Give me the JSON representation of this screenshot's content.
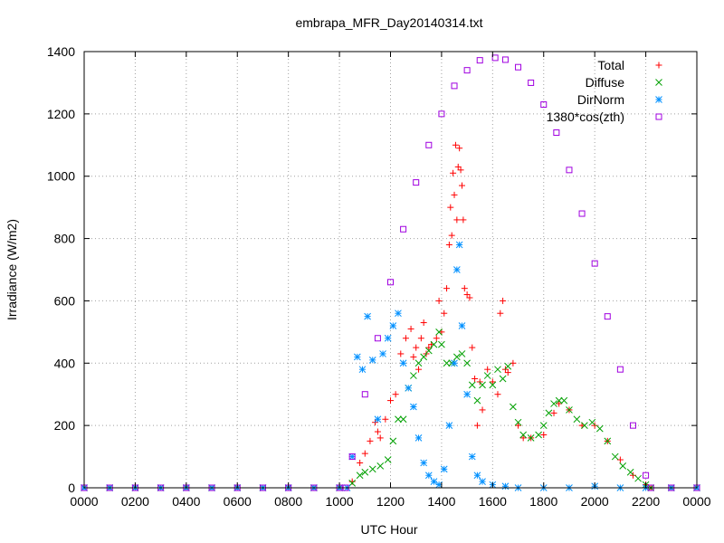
{
  "chart_data": {
    "type": "scatter",
    "title": "embrapa_MFR_Day20140314.txt",
    "xlabel": "UTC Hour",
    "ylabel": "Irradiance (W/m2)",
    "xlim": [
      0,
      24
    ],
    "ylim": [
      0,
      1400
    ],
    "grid": true,
    "legend_position": "top-right",
    "x_ticks": [
      {
        "value": 0,
        "label": "0000"
      },
      {
        "value": 2,
        "label": "0200"
      },
      {
        "value": 4,
        "label": "0400"
      },
      {
        "value": 6,
        "label": "0600"
      },
      {
        "value": 8,
        "label": "0800"
      },
      {
        "value": 10,
        "label": "1000"
      },
      {
        "value": 12,
        "label": "1200"
      },
      {
        "value": 14,
        "label": "1400"
      },
      {
        "value": 16,
        "label": "1600"
      },
      {
        "value": 18,
        "label": "1800"
      },
      {
        "value": 20,
        "label": "2000"
      },
      {
        "value": 22,
        "label": "2200"
      },
      {
        "value": 24,
        "label": "0000"
      }
    ],
    "y_ticks": [
      {
        "value": 0,
        "label": "0"
      },
      {
        "value": 200,
        "label": "200"
      },
      {
        "value": 400,
        "label": "400"
      },
      {
        "value": 600,
        "label": "600"
      },
      {
        "value": 800,
        "label": "800"
      },
      {
        "value": 1000,
        "label": "1000"
      },
      {
        "value": 1200,
        "label": "1200"
      },
      {
        "value": 1400,
        "label": "1400"
      }
    ],
    "series": [
      {
        "name": "Total",
        "color": "#ff0000",
        "marker": "plus",
        "points": [
          [
            0,
            0
          ],
          [
            1,
            0
          ],
          [
            2,
            0
          ],
          [
            3,
            0
          ],
          [
            4,
            0
          ],
          [
            5,
            0
          ],
          [
            6,
            0
          ],
          [
            7,
            0
          ],
          [
            8,
            0
          ],
          [
            9,
            0
          ],
          [
            10,
            0
          ],
          [
            10.5,
            20
          ],
          [
            10.8,
            80
          ],
          [
            11.0,
            110
          ],
          [
            11.2,
            150
          ],
          [
            11.4,
            210
          ],
          [
            11.5,
            180
          ],
          [
            11.6,
            160
          ],
          [
            11.8,
            220
          ],
          [
            12.0,
            280
          ],
          [
            12.2,
            300
          ],
          [
            12.4,
            430
          ],
          [
            12.6,
            480
          ],
          [
            12.8,
            510
          ],
          [
            12.9,
            420
          ],
          [
            13.0,
            450
          ],
          [
            13.1,
            380
          ],
          [
            13.2,
            480
          ],
          [
            13.3,
            530
          ],
          [
            13.4,
            430
          ],
          [
            13.5,
            450
          ],
          [
            13.6,
            460
          ],
          [
            13.8,
            480
          ],
          [
            13.9,
            600
          ],
          [
            14.0,
            500
          ],
          [
            14.1,
            560
          ],
          [
            14.2,
            640
          ],
          [
            14.3,
            780
          ],
          [
            14.35,
            900
          ],
          [
            14.4,
            810
          ],
          [
            14.45,
            1010
          ],
          [
            14.5,
            940
          ],
          [
            14.55,
            1100
          ],
          [
            14.6,
            860
          ],
          [
            14.65,
            1030
          ],
          [
            14.7,
            1090
          ],
          [
            14.75,
            1020
          ],
          [
            14.8,
            970
          ],
          [
            14.85,
            860
          ],
          [
            14.9,
            640
          ],
          [
            15.0,
            620
          ],
          [
            15.1,
            610
          ],
          [
            15.2,
            450
          ],
          [
            15.3,
            350
          ],
          [
            15.4,
            200
          ],
          [
            15.5,
            340
          ],
          [
            15.6,
            250
          ],
          [
            15.8,
            380
          ],
          [
            16.0,
            340
          ],
          [
            16.2,
            300
          ],
          [
            16.3,
            560
          ],
          [
            16.4,
            600
          ],
          [
            16.5,
            380
          ],
          [
            16.6,
            370
          ],
          [
            16.8,
            400
          ],
          [
            17.0,
            200
          ],
          [
            17.2,
            160
          ],
          [
            17.5,
            160
          ],
          [
            18.0,
            170
          ],
          [
            18.4,
            240
          ],
          [
            18.6,
            270
          ],
          [
            19.0,
            250
          ],
          [
            19.5,
            200
          ],
          [
            20.0,
            200
          ],
          [
            20.5,
            150
          ],
          [
            21.0,
            90
          ],
          [
            21.5,
            40
          ],
          [
            22.0,
            10
          ],
          [
            22.2,
            0
          ],
          [
            23,
            0
          ],
          [
            24,
            0
          ]
        ]
      },
      {
        "name": "Diffuse",
        "color": "#00a000",
        "marker": "cross",
        "points": [
          [
            0,
            0
          ],
          [
            1,
            0
          ],
          [
            2,
            0
          ],
          [
            3,
            0
          ],
          [
            4,
            0
          ],
          [
            5,
            0
          ],
          [
            6,
            0
          ],
          [
            7,
            0
          ],
          [
            8,
            0
          ],
          [
            9,
            0
          ],
          [
            10,
            0
          ],
          [
            10.5,
            15
          ],
          [
            10.8,
            40
          ],
          [
            11.0,
            50
          ],
          [
            11.3,
            60
          ],
          [
            11.6,
            70
          ],
          [
            11.9,
            90
          ],
          [
            12.1,
            150
          ],
          [
            12.3,
            220
          ],
          [
            12.5,
            220
          ],
          [
            12.7,
            320
          ],
          [
            12.9,
            360
          ],
          [
            13.1,
            400
          ],
          [
            13.3,
            420
          ],
          [
            13.5,
            440
          ],
          [
            13.7,
            460
          ],
          [
            13.9,
            500
          ],
          [
            14.0,
            460
          ],
          [
            14.2,
            400
          ],
          [
            14.4,
            400
          ],
          [
            14.6,
            420
          ],
          [
            14.8,
            430
          ],
          [
            15.0,
            400
          ],
          [
            15.2,
            330
          ],
          [
            15.4,
            280
          ],
          [
            15.6,
            330
          ],
          [
            15.8,
            360
          ],
          [
            16.0,
            330
          ],
          [
            16.2,
            380
          ],
          [
            16.4,
            350
          ],
          [
            16.6,
            390
          ],
          [
            16.8,
            260
          ],
          [
            17.0,
            210
          ],
          [
            17.2,
            170
          ],
          [
            17.5,
            160
          ],
          [
            17.8,
            170
          ],
          [
            18.0,
            200
          ],
          [
            18.2,
            240
          ],
          [
            18.4,
            270
          ],
          [
            18.6,
            280
          ],
          [
            18.8,
            280
          ],
          [
            19.0,
            250
          ],
          [
            19.3,
            220
          ],
          [
            19.6,
            200
          ],
          [
            19.9,
            210
          ],
          [
            20.2,
            190
          ],
          [
            20.5,
            150
          ],
          [
            20.8,
            100
          ],
          [
            21.1,
            70
          ],
          [
            21.4,
            50
          ],
          [
            21.7,
            30
          ],
          [
            22.0,
            10
          ],
          [
            22.2,
            0
          ],
          [
            23,
            0
          ],
          [
            24,
            0
          ]
        ]
      },
      {
        "name": "DirNorm",
        "color": "#0090ff",
        "marker": "star",
        "points": [
          [
            0,
            0
          ],
          [
            1,
            0
          ],
          [
            2,
            0
          ],
          [
            3,
            0
          ],
          [
            4,
            0
          ],
          [
            5,
            0
          ],
          [
            6,
            0
          ],
          [
            7,
            0
          ],
          [
            8,
            0
          ],
          [
            9,
            0
          ],
          [
            10,
            0
          ],
          [
            10.3,
            0
          ],
          [
            10.5,
            100
          ],
          [
            10.7,
            420
          ],
          [
            10.9,
            380
          ],
          [
            11.1,
            550
          ],
          [
            11.3,
            410
          ],
          [
            11.5,
            220
          ],
          [
            11.7,
            430
          ],
          [
            11.9,
            480
          ],
          [
            12.1,
            520
          ],
          [
            12.3,
            560
          ],
          [
            12.5,
            400
          ],
          [
            12.7,
            320
          ],
          [
            12.9,
            260
          ],
          [
            13.1,
            160
          ],
          [
            13.3,
            80
          ],
          [
            13.5,
            40
          ],
          [
            13.7,
            20
          ],
          [
            13.9,
            10
          ],
          [
            14.1,
            60
          ],
          [
            14.3,
            200
          ],
          [
            14.5,
            400
          ],
          [
            14.6,
            700
          ],
          [
            14.7,
            780
          ],
          [
            14.8,
            520
          ],
          [
            15.0,
            300
          ],
          [
            15.2,
            100
          ],
          [
            15.4,
            40
          ],
          [
            15.6,
            20
          ],
          [
            16.0,
            10
          ],
          [
            16.5,
            5
          ],
          [
            17,
            0
          ],
          [
            18,
            0
          ],
          [
            19,
            0
          ],
          [
            20,
            5
          ],
          [
            21,
            0
          ],
          [
            22,
            0
          ],
          [
            23,
            0
          ],
          [
            24,
            0
          ]
        ]
      },
      {
        "name": "1380*cos(zth)",
        "color": "#a000e0",
        "marker": "square",
        "points": [
          [
            0,
            0
          ],
          [
            1,
            0
          ],
          [
            2,
            0
          ],
          [
            3,
            0
          ],
          [
            4,
            0
          ],
          [
            5,
            0
          ],
          [
            6,
            0
          ],
          [
            7,
            0
          ],
          [
            8,
            0
          ],
          [
            9,
            0
          ],
          [
            10,
            0
          ],
          [
            10.25,
            0
          ],
          [
            10.5,
            100
          ],
          [
            11,
            300
          ],
          [
            11.5,
            480
          ],
          [
            12,
            660
          ],
          [
            12.5,
            830
          ],
          [
            13,
            980
          ],
          [
            13.5,
            1100
          ],
          [
            14,
            1200
          ],
          [
            14.5,
            1290
          ],
          [
            15,
            1340
          ],
          [
            15.5,
            1372
          ],
          [
            16.1,
            1380
          ],
          [
            16.5,
            1374
          ],
          [
            17,
            1350
          ],
          [
            17.5,
            1300
          ],
          [
            18,
            1230
          ],
          [
            18.5,
            1140
          ],
          [
            19,
            1020
          ],
          [
            19.5,
            880
          ],
          [
            20,
            720
          ],
          [
            20.5,
            550
          ],
          [
            21,
            380
          ],
          [
            21.5,
            200
          ],
          [
            22,
            40
          ],
          [
            22.2,
            0
          ],
          [
            23,
            0
          ],
          [
            24,
            0
          ]
        ]
      }
    ]
  }
}
